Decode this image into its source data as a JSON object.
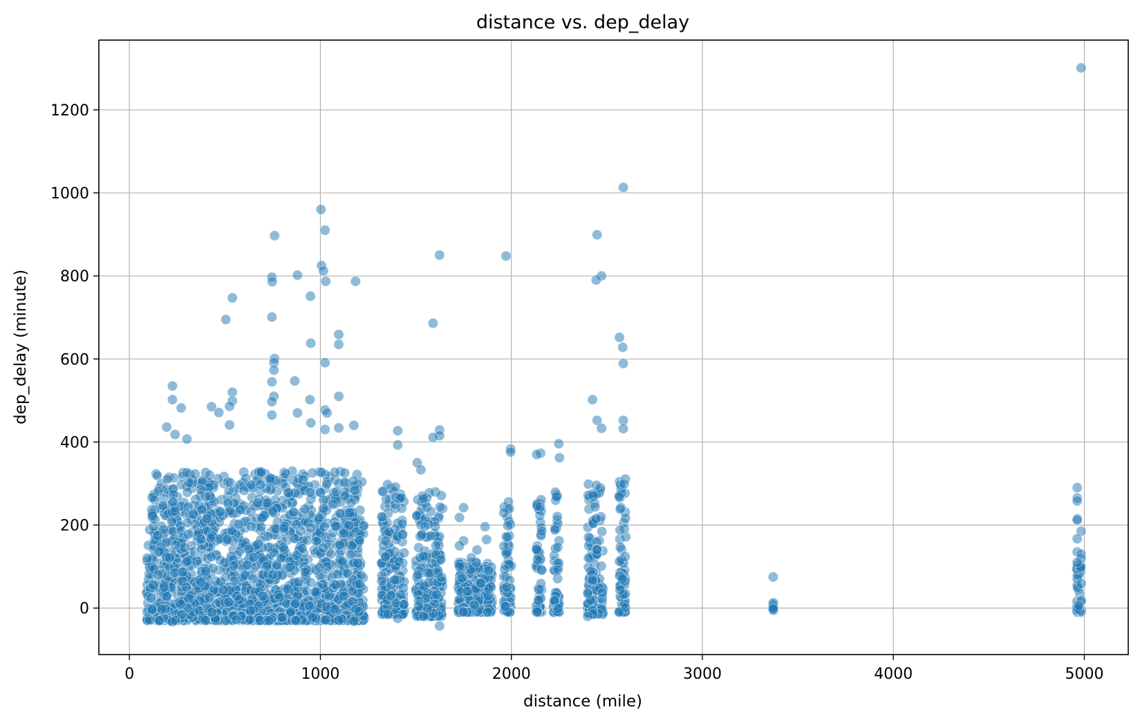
{
  "chart_data": {
    "type": "scatter",
    "title": "distance vs. dep_delay",
    "xlabel": "distance (mile)",
    "ylabel": "dep_delay (minute)",
    "xlim": [
      -160,
      5230
    ],
    "ylim": [
      -112,
      1368
    ],
    "xticks": [
      0,
      1000,
      2000,
      3000,
      4000,
      5000
    ],
    "yticks": [
      0,
      200,
      400,
      600,
      800,
      1000,
      1200
    ],
    "grid": true,
    "legend": "none",
    "color": "#1f77b4",
    "point_opacity": 0.5,
    "clusters": [
      {
        "x_min": 90,
        "x_max": 1230,
        "y_min": -30,
        "y_max": 330
      },
      {
        "x_min": 1320,
        "x_max": 1440,
        "y_min": -15,
        "y_max": 300
      },
      {
        "x_min": 1500,
        "x_max": 1640,
        "y_min": -20,
        "y_max": 280
      },
      {
        "x_min": 1720,
        "x_max": 1900,
        "y_min": -10,
        "y_max": 110
      },
      {
        "x_min": 1960,
        "x_max": 2000,
        "y_min": -10,
        "y_max": 260
      },
      {
        "x_min": 2130,
        "x_max": 2160,
        "y_min": -10,
        "y_max": 300
      },
      {
        "x_min": 2220,
        "x_max": 2250,
        "y_min": -10,
        "y_max": 280
      },
      {
        "x_min": 2400,
        "x_max": 2480,
        "y_min": -15,
        "y_max": 300
      },
      {
        "x_min": 2560,
        "x_max": 2600,
        "y_min": -10,
        "y_max": 320
      },
      {
        "x_min": 3370,
        "x_max": 3375,
        "y_min": -5,
        "y_max": 12
      },
      {
        "x_min": 4960,
        "x_max": 4985,
        "y_min": -10,
        "y_max": 110
      }
    ],
    "points": [
      [
        4983,
        1301
      ],
      [
        2586,
        1013
      ],
      [
        1003,
        960
      ],
      [
        1024,
        910
      ],
      [
        760,
        897
      ],
      [
        2449,
        899
      ],
      [
        1624,
        850
      ],
      [
        1972,
        848
      ],
      [
        1006,
        825
      ],
      [
        1016,
        812
      ],
      [
        880,
        802
      ],
      [
        746,
        797
      ],
      [
        2472,
        800
      ],
      [
        1184,
        787
      ],
      [
        1028,
        787
      ],
      [
        748,
        786
      ],
      [
        2444,
        790
      ],
      [
        948,
        751
      ],
      [
        539,
        747
      ],
      [
        505,
        695
      ],
      [
        746,
        701
      ],
      [
        1590,
        686
      ],
      [
        1096,
        659
      ],
      [
        2566,
        652
      ],
      [
        950,
        638
      ],
      [
        1096,
        635
      ],
      [
        2583,
        628
      ],
      [
        760,
        601
      ],
      [
        757,
        591
      ],
      [
        1024,
        591
      ],
      [
        2586,
        589
      ],
      [
        757,
        573
      ],
      [
        866,
        547
      ],
      [
        746,
        545
      ],
      [
        225,
        535
      ],
      [
        539,
        520
      ],
      [
        1096,
        510
      ],
      [
        757,
        510
      ],
      [
        2425,
        502
      ],
      [
        225,
        502
      ],
      [
        945,
        502
      ],
      [
        539,
        499
      ],
      [
        746,
        497
      ],
      [
        271,
        482
      ],
      [
        430,
        485
      ],
      [
        524,
        486
      ],
      [
        1024,
        477
      ],
      [
        880,
        470
      ],
      [
        468,
        471
      ],
      [
        1035,
        470
      ],
      [
        746,
        465
      ],
      [
        2449,
        452
      ],
      [
        2586,
        452
      ],
      [
        524,
        441
      ],
      [
        950,
        446
      ],
      [
        1175,
        440
      ],
      [
        195,
        436
      ],
      [
        1024,
        430
      ],
      [
        1096,
        434
      ],
      [
        1405,
        427
      ],
      [
        1624,
        429
      ],
      [
        2472,
        433
      ],
      [
        2586,
        432
      ],
      [
        1624,
        415
      ],
      [
        301,
        407
      ],
      [
        239,
        418
      ],
      [
        1590,
        411
      ],
      [
        2248,
        396
      ],
      [
        1405,
        393
      ],
      [
        1996,
        383
      ],
      [
        1996,
        376
      ],
      [
        2153,
        373
      ],
      [
        2133,
        370
      ],
      [
        2252,
        362
      ],
      [
        1507,
        350
      ],
      [
        1526,
        333
      ],
      [
        1325,
        281
      ],
      [
        1750,
        242
      ],
      [
        1728,
        218
      ],
      [
        1862,
        196
      ],
      [
        1750,
        162
      ],
      [
        1870,
        165
      ],
      [
        1728,
        150
      ],
      [
        1790,
        121
      ],
      [
        1745,
        100
      ],
      [
        1820,
        140
      ],
      [
        1880,
        90
      ],
      [
        1728,
        100
      ],
      [
        1840,
        60
      ],
      [
        1770,
        40
      ],
      [
        3371,
        75
      ],
      [
        3371,
        12
      ],
      [
        3371,
        8
      ],
      [
        3371,
        4
      ],
      [
        3371,
        0
      ],
      [
        3371,
        -3
      ],
      [
        4963,
        290
      ],
      [
        4963,
        265
      ],
      [
        4963,
        258
      ],
      [
        4963,
        215
      ],
      [
        4963,
        212
      ],
      [
        4983,
        185
      ],
      [
        4963,
        167
      ],
      [
        4963,
        135
      ],
      [
        4983,
        130
      ],
      [
        4983,
        120
      ],
      [
        4963,
        110
      ],
      [
        1624,
        -43
      ],
      [
        225,
        -33
      ],
      [
        1175,
        -32
      ],
      [
        1405,
        -25
      ],
      [
        2400,
        -20
      ],
      [
        560,
        -28
      ],
      [
        800,
        -22
      ]
    ]
  }
}
